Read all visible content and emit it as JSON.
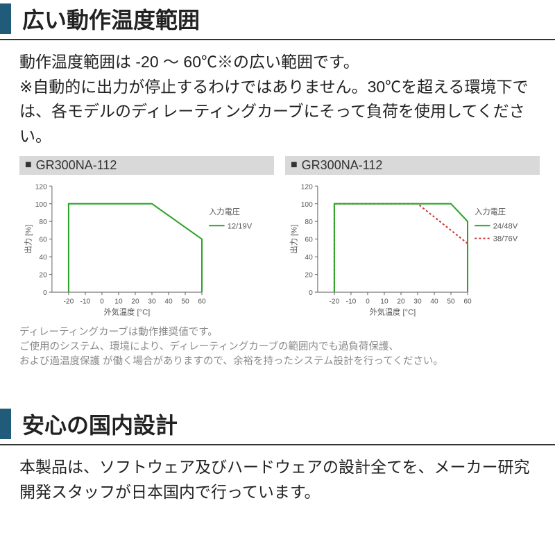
{
  "section1": {
    "title": "広い動作温度範囲",
    "body": "動作温度範囲は -20 ～ 60℃※の広い範囲です。\n※自動的に出力が停止するわけではありません。30℃を超える環境下では、各モデルのディレーティングカーブにそって負荷を使用してください。"
  },
  "section2": {
    "title": "安心の国内設計",
    "body": "本製品は、ソフトウェア及びハードウェアの設計全てを、メーカー研究開発スタッフが日本国内で行っています。"
  },
  "caption": "ディレーティングカーブは動作推奨値です。\nご使用のシステム、環境により、ディレーティングカーブの範囲内でも過負荷保護、\nおよび過温度保護 が働く場合がありますので、余裕を持ったシステム設計を行ってください。",
  "chart1": {
    "label": "GR300NA-112",
    "type": "line",
    "xlim": [
      -30,
      60
    ],
    "xtick_start": -20,
    "xtick_step": 10,
    "ylim": [
      0,
      120
    ],
    "ytick_step": 20,
    "xlabel": "外気温度 [°C]",
    "ylabel": "出力 [%]",
    "legend_title": "入力電圧",
    "series": [
      {
        "name": "12/19V",
        "color": "#2aa42a",
        "dash": "none",
        "width": 2,
        "points": [
          [
            -20,
            0
          ],
          [
            -20,
            100
          ],
          [
            30,
            100
          ],
          [
            60,
            60
          ],
          [
            60,
            0
          ]
        ]
      }
    ],
    "background_color": "#ffffff",
    "axis_color": "#666666",
    "text_color": "#555555",
    "axis_fontsize": 10,
    "label_fontsize": 11
  },
  "chart2": {
    "label": "GR300NA-112",
    "type": "line",
    "xlim": [
      -30,
      60
    ],
    "xtick_start": -20,
    "xtick_step": 10,
    "ylim": [
      0,
      120
    ],
    "ytick_step": 20,
    "xlabel": "外気温度 [°C]",
    "ylabel": "出力 [%]",
    "legend_title": "入力電圧",
    "series": [
      {
        "name": "24/48V",
        "color": "#2aa42a",
        "dash": "none",
        "width": 2,
        "points": [
          [
            -20,
            0
          ],
          [
            -20,
            100
          ],
          [
            50,
            100
          ],
          [
            60,
            80
          ],
          [
            60,
            0
          ]
        ]
      },
      {
        "name": "38/76V",
        "color": "#cc3333",
        "dash": "3,3",
        "width": 2,
        "points": [
          [
            -20,
            0
          ],
          [
            -20,
            100
          ],
          [
            30,
            100
          ],
          [
            60,
            55
          ],
          [
            60,
            0
          ]
        ]
      }
    ],
    "background_color": "#ffffff",
    "axis_color": "#666666",
    "text_color": "#555555",
    "axis_fontsize": 10,
    "label_fontsize": 11
  }
}
